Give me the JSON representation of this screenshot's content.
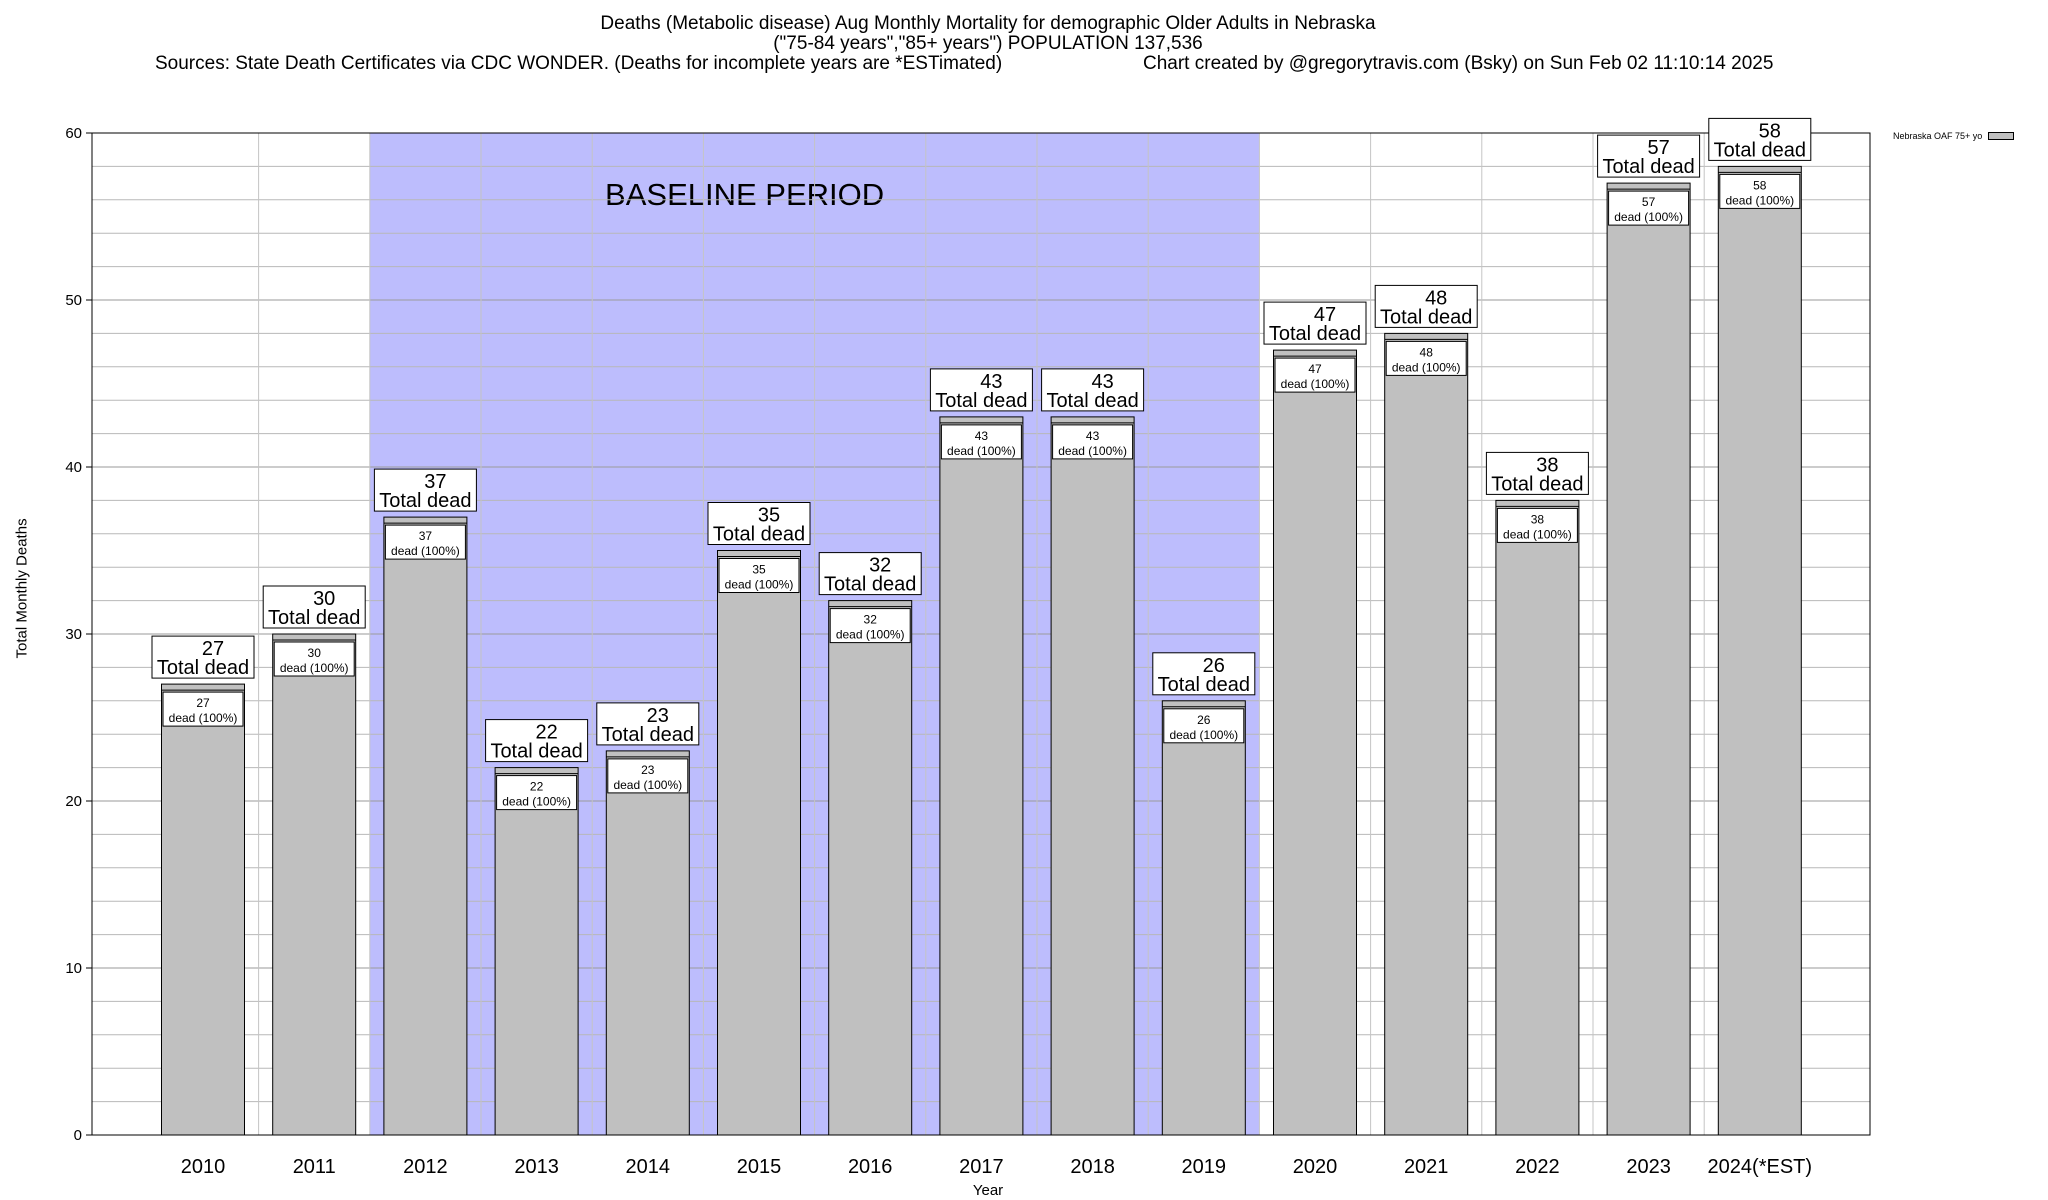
{
  "chart_data": {
    "type": "bar",
    "title_lines": [
      "Deaths (Metabolic disease) Aug Monthly Mortality for demographic Older Adults in Nebraska",
      "(\"75-84 years\",\"85+ years\") POPULATION 137,536",
      "Sources: State Death Certificates via CDC WONDER. (Deaths for incomplete years are *ESTimated)",
      "Chart created by @gregorytravis.com (Bsky) on Sun Feb 02 11:10:14 2025"
    ],
    "xlabel": "Year",
    "ylabel": "Total Monthly Deaths",
    "ylim": [
      0,
      60
    ],
    "yticks": [
      0,
      10,
      20,
      30,
      40,
      50,
      60
    ],
    "categories": [
      "2010",
      "2011",
      "2012",
      "2013",
      "2014",
      "2015",
      "2016",
      "2017",
      "2018",
      "2019",
      "2020",
      "2021",
      "2022",
      "2023",
      "2024(*EST)"
    ],
    "series": [
      {
        "name": "Nebraska OAF 75+ yo",
        "values": [
          27,
          30,
          37,
          22,
          23,
          35,
          32,
          43,
          43,
          26,
          47,
          48,
          38,
          57,
          58
        ]
      }
    ],
    "top_label_suffix": "Total dead",
    "inner_label_suffix": "dead (100%)",
    "baseline": {
      "label": "BASELINE PERIOD",
      "from": "2012",
      "to": "2019",
      "color": "#bdbdfd"
    },
    "bar_color": "#c0c0c0",
    "grid": true,
    "legend_position": "top-right"
  }
}
